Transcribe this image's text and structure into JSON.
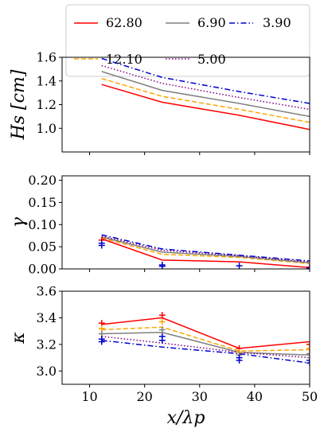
{
  "chart_data": [
    {
      "type": "line",
      "ylabel": "Hs [cm]",
      "xlim": [
        5,
        50
      ],
      "ylim": [
        0.8,
        1.6
      ],
      "yticks": [
        "1.0",
        "1.2",
        "1.4",
        "1.6"
      ],
      "ytick_values": [
        1.0,
        1.2,
        1.4,
        1.6
      ],
      "x": [
        12.2,
        23.2,
        37.2,
        50
      ],
      "series": [
        {
          "name": "62.80",
          "values": [
            1.37,
            1.22,
            1.11,
            0.99
          ]
        },
        {
          "name": "12.10",
          "values": [
            1.42,
            1.27,
            1.16,
            1.05
          ]
        },
        {
          "name": "6.90",
          "values": [
            1.48,
            1.32,
            1.21,
            1.1
          ]
        },
        {
          "name": "5.00",
          "values": [
            1.53,
            1.38,
            1.26,
            1.16
          ]
        },
        {
          "name": "3.90",
          "values": [
            1.59,
            1.43,
            1.31,
            1.21
          ]
        }
      ]
    },
    {
      "type": "line",
      "ylabel": "γ",
      "xlim": [
        5,
        50
      ],
      "ylim": [
        0,
        0.21
      ],
      "yticks": [
        "0.00",
        "0.05",
        "0.10",
        "0.15",
        "0.20"
      ],
      "ytick_values": [
        0,
        0.05,
        0.1,
        0.15,
        0.2
      ],
      "x": [
        12.2,
        23.2,
        37.2,
        50
      ],
      "series": [
        {
          "name": "62.80",
          "values": [
            0.068,
            0.02,
            0.016,
            0.003
          ]
        },
        {
          "name": "12.10",
          "values": [
            0.07,
            0.033,
            0.026,
            0.012
          ]
        },
        {
          "name": "6.90",
          "values": [
            0.072,
            0.038,
            0.028,
            0.014
          ]
        },
        {
          "name": "5.00",
          "values": [
            0.074,
            0.042,
            0.03,
            0.016
          ]
        },
        {
          "name": "3.90",
          "values": [
            0.077,
            0.045,
            0.031,
            0.018
          ]
        }
      ],
      "markers": [
        {
          "series": "62.80",
          "x": 12.2,
          "y": 0.065
        },
        {
          "series": "3.90",
          "x": 12.2,
          "y": 0.053
        },
        {
          "series": "3.90",
          "x": 12.2,
          "y": 0.058
        },
        {
          "series": "3.90",
          "x": 23.2,
          "y": 0.006
        },
        {
          "series": "3.90",
          "x": 23.2,
          "y": 0.009
        },
        {
          "series": "3.90",
          "x": 37.2,
          "y": 0.007
        },
        {
          "series": "62.80",
          "x": 50,
          "y": 0.004
        },
        {
          "series": "3.90",
          "x": 50,
          "y": 0.002
        }
      ]
    },
    {
      "type": "line",
      "ylabel": "κ",
      "xlabel": "x/λp",
      "xlim": [
        5,
        50
      ],
      "ylim": [
        2.9,
        3.6
      ],
      "xticks": [
        "10",
        "20",
        "30",
        "40",
        "50"
      ],
      "xtick_values": [
        10,
        20,
        30,
        40,
        50
      ],
      "yticks": [
        "3.0",
        "3.2",
        "3.4",
        "3.6"
      ],
      "ytick_values": [
        3.0,
        3.2,
        3.4,
        3.6
      ],
      "x": [
        12.2,
        23.2,
        37.2,
        50
      ],
      "series": [
        {
          "name": "62.80",
          "values": [
            3.35,
            3.4,
            3.17,
            3.22
          ]
        },
        {
          "name": "12.10",
          "values": [
            3.31,
            3.33,
            3.15,
            3.16
          ]
        },
        {
          "name": "6.90",
          "values": [
            3.28,
            3.29,
            3.14,
            3.12
          ]
        },
        {
          "name": "5.00",
          "values": [
            3.26,
            3.21,
            3.14,
            3.1
          ]
        },
        {
          "name": "3.90",
          "values": [
            3.23,
            3.18,
            3.13,
            3.06
          ]
        }
      ],
      "markers": [
        {
          "series": "62.80",
          "x": 12.2,
          "y": 3.36
        },
        {
          "series": "12.10",
          "x": 12.2,
          "y": 3.32
        },
        {
          "series": "6.90",
          "x": 12.2,
          "y": 3.28
        },
        {
          "series": "3.90",
          "x": 12.2,
          "y": 3.24
        },
        {
          "series": "3.90",
          "x": 12.2,
          "y": 3.22
        },
        {
          "series": "62.80",
          "x": 23.2,
          "y": 3.42
        },
        {
          "series": "12.10",
          "x": 23.2,
          "y": 3.37
        },
        {
          "series": "6.90",
          "x": 23.2,
          "y": 3.31
        },
        {
          "series": "3.90",
          "x": 23.2,
          "y": 3.26
        },
        {
          "series": "3.90",
          "x": 23.2,
          "y": 3.23
        },
        {
          "series": "62.80",
          "x": 37.2,
          "y": 3.17
        },
        {
          "series": "12.10",
          "x": 37.2,
          "y": 3.14
        },
        {
          "series": "6.90",
          "x": 37.2,
          "y": 3.12
        },
        {
          "series": "3.90",
          "x": 37.2,
          "y": 3.1
        },
        {
          "series": "3.90",
          "x": 37.2,
          "y": 3.08
        },
        {
          "series": "62.80",
          "x": 50,
          "y": 3.2
        },
        {
          "series": "12.10",
          "x": 50,
          "y": 3.17
        },
        {
          "series": "6.90",
          "x": 50,
          "y": 3.13
        },
        {
          "series": "3.90",
          "x": 50,
          "y": 3.08
        },
        {
          "series": "3.90",
          "x": 50,
          "y": 3.06
        }
      ]
    }
  ],
  "legend": {
    "placement": "top",
    "entries": [
      "62.80",
      "6.90",
      "3.90",
      "12.10",
      "5.00"
    ]
  },
  "styles": {
    "62.80": {
      "color": "#ff0000",
      "dash": "solid"
    },
    "12.10": {
      "color": "#ffa500",
      "dash": "dashed"
    },
    "6.90": {
      "color": "#808080",
      "dash": "solid"
    },
    "5.00": {
      "color": "#800080",
      "dash": "dotted"
    },
    "3.90": {
      "color": "#0000cd",
      "dash": "dashdot"
    }
  }
}
